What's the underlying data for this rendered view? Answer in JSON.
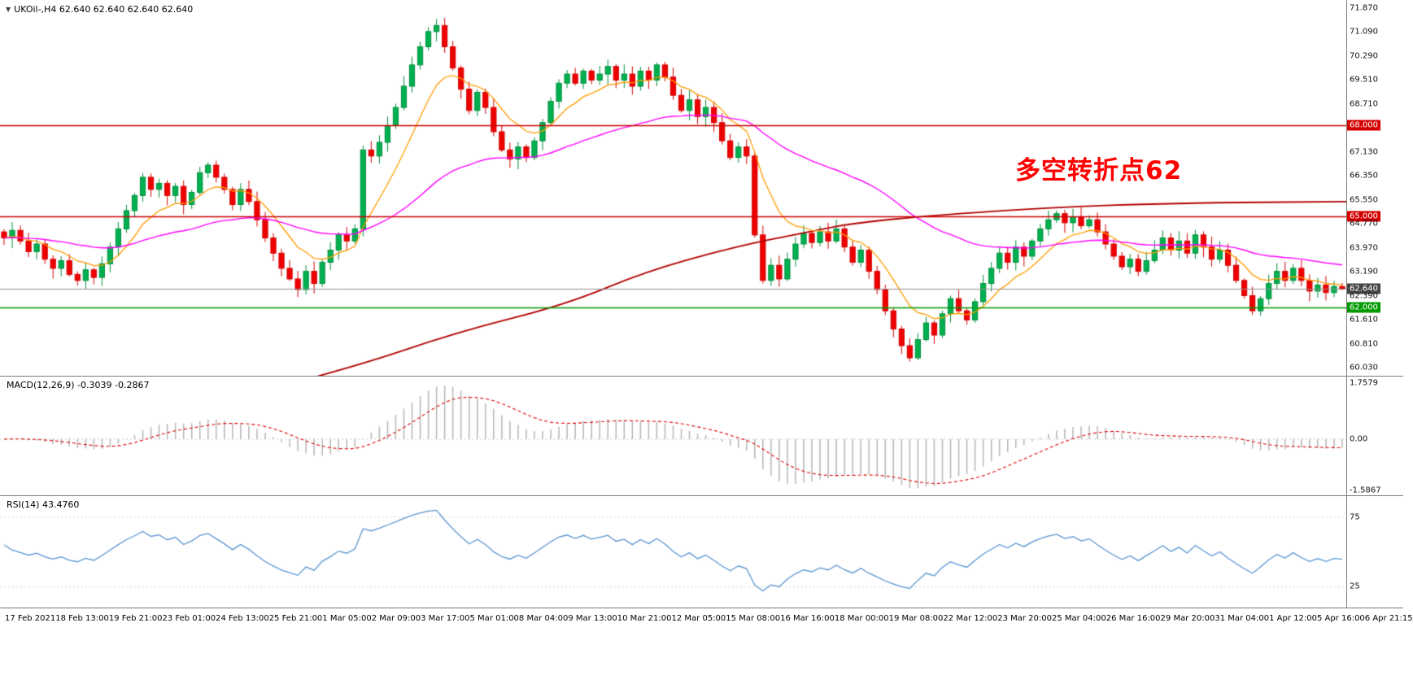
{
  "header": {
    "collapse_icon": "▼",
    "symbol_label": "UKOil-,H4 62.640 62.640 62.640 62.640"
  },
  "main_chart": {
    "annotation": "多空转折点62",
    "annotation_color": "#ff0000"
  },
  "macd_panel": {
    "label": "MACD(12,26,9) -0.3039 -0.2867"
  },
  "rsi_panel": {
    "label": "RSI(14) 43.4760"
  },
  "chart_data": {
    "type": "candlestick",
    "symbol": "UKOil-",
    "timeframe": "H4",
    "last_price": 62.64,
    "price_range": {
      "min": 59.76,
      "max": 72.14
    },
    "closes": [
      64.3,
      64.55,
      64.2,
      63.85,
      64.1,
      63.6,
      63.3,
      63.55,
      63.1,
      62.9,
      63.25,
      63.0,
      63.45,
      64.0,
      64.6,
      65.2,
      65.7,
      66.3,
      65.9,
      66.1,
      65.7,
      66.0,
      65.4,
      65.8,
      66.45,
      66.7,
      66.3,
      65.9,
      65.4,
      65.9,
      65.5,
      64.9,
      64.3,
      63.8,
      63.3,
      62.95,
      62.6,
      63.2,
      62.8,
      63.5,
      63.9,
      64.4,
      64.2,
      64.6,
      67.2,
      67.0,
      67.45,
      68.0,
      68.6,
      69.3,
      70.0,
      70.6,
      71.1,
      71.3,
      70.6,
      69.9,
      69.2,
      68.5,
      69.1,
      68.6,
      67.8,
      67.2,
      66.9,
      67.3,
      66.95,
      67.5,
      68.1,
      68.8,
      69.4,
      69.7,
      69.4,
      69.8,
      69.5,
      69.7,
      69.95,
      69.5,
      69.7,
      69.3,
      69.8,
      69.5,
      70.0,
      69.6,
      69.0,
      68.5,
      68.85,
      68.3,
      68.6,
      68.1,
      67.5,
      66.95,
      67.3,
      67.0,
      64.4,
      62.9,
      63.4,
      62.95,
      63.6,
      64.1,
      64.45,
      64.15,
      64.5,
      64.2,
      64.6,
      64.0,
      63.5,
      63.9,
      63.2,
      62.6,
      61.9,
      61.3,
      60.75,
      60.35,
      60.95,
      61.5,
      61.1,
      61.8,
      62.3,
      61.9,
      61.6,
      62.2,
      62.8,
      63.3,
      63.8,
      63.5,
      64.0,
      63.7,
      64.2,
      64.6,
      64.9,
      65.1,
      64.8,
      65.0,
      64.7,
      64.9,
      64.5,
      64.1,
      63.7,
      63.35,
      63.6,
      63.2,
      63.55,
      63.9,
      64.3,
      63.9,
      64.2,
      63.8,
      64.4,
      64.0,
      63.6,
      63.9,
      63.4,
      62.9,
      62.4,
      61.9,
      62.3,
      62.8,
      63.2,
      62.9,
      63.3,
      62.9,
      62.55,
      62.75,
      62.5,
      62.7,
      62.64
    ],
    "price_ticks": [
      {
        "label": "71.870",
        "value": 71.87,
        "type": "normal"
      },
      {
        "label": "71.090",
        "value": 71.09,
        "type": "normal"
      },
      {
        "label": "70.290",
        "value": 70.29,
        "type": "normal"
      },
      {
        "label": "69.510",
        "value": 69.51,
        "type": "normal"
      },
      {
        "label": "68.710",
        "value": 68.71,
        "type": "normal"
      },
      {
        "label": "68.000",
        "value": 68.0,
        "type": "resistance"
      },
      {
        "label": "67.130",
        "value": 67.13,
        "type": "normal"
      },
      {
        "label": "66.350",
        "value": 66.35,
        "type": "normal"
      },
      {
        "label": "65.550",
        "value": 65.55,
        "type": "normal"
      },
      {
        "label": "65.000",
        "value": 65.0,
        "type": "resistance"
      },
      {
        "label": "64.770",
        "value": 64.77,
        "type": "normal"
      },
      {
        "label": "63.970",
        "value": 63.97,
        "type": "normal"
      },
      {
        "label": "63.190",
        "value": 63.19,
        "type": "normal"
      },
      {
        "label": "62.640",
        "value": 62.64,
        "type": "current"
      },
      {
        "label": "62.390",
        "value": 62.39,
        "type": "normal"
      },
      {
        "label": "62.000",
        "value": 62.0,
        "type": "support"
      },
      {
        "label": "61.610",
        "value": 61.61,
        "type": "normal"
      },
      {
        "label": "60.810",
        "value": 60.81,
        "type": "normal"
      },
      {
        "label": "60.030",
        "value": 60.03,
        "type": "normal"
      }
    ],
    "hlines": [
      {
        "price": 68.0,
        "label": "68.000",
        "color": "#cc0000",
        "type": "resistance"
      },
      {
        "price": 65.0,
        "label": "65.000",
        "color": "#cc0000",
        "type": "resistance"
      },
      {
        "price": 62.0,
        "label": "62.000",
        "color": "#009a00",
        "type": "support"
      },
      {
        "price": 62.64,
        "label": "62.640",
        "color": "#909090",
        "type": "current"
      }
    ],
    "moving_averages": [
      {
        "name": "fast-ma",
        "period": 9,
        "color": "#ff9c00"
      },
      {
        "name": "mid-ma",
        "period": 45,
        "color": "#ff00ff"
      }
    ],
    "trend_ma": {
      "color": "#b30000",
      "waypoints": [
        [
          0.19,
          59.2
        ],
        [
          0.26,
          60.0
        ],
        [
          0.34,
          61.2
        ],
        [
          0.42,
          62.1
        ],
        [
          0.48,
          63.2
        ],
        [
          0.545,
          64.0
        ],
        [
          0.6,
          64.5
        ],
        [
          0.635,
          64.8
        ],
        [
          0.695,
          65.05
        ],
        [
          0.78,
          65.3
        ],
        [
          0.87,
          65.45
        ],
        [
          1.0,
          65.5
        ]
      ]
    },
    "macd": {
      "params": [
        12,
        26,
        9
      ],
      "current_values": [
        -0.3039,
        -0.2867
      ],
      "range": [
        -1.75,
        1.95
      ],
      "ticks": [
        {
          "label": "1.7579",
          "value": 1.7579
        },
        {
          "label": "0.00",
          "value": 0
        },
        {
          "label": "-1.5867",
          "value": -1.5867
        }
      ],
      "histogram_color": "#b5b5b5",
      "signal_color": "#dd0000"
    },
    "rsi": {
      "period": 14,
      "current_value": 43.476,
      "range": [
        10,
        90
      ],
      "levels": [
        75,
        25
      ],
      "ticks": [
        {
          "label": "75",
          "value": 75
        },
        {
          "label": "25",
          "value": 25
        }
      ],
      "line_color": "#5a96d2"
    },
    "time_labels": [
      "17 Feb 2021",
      "18 Feb 13:00",
      "19 Feb 21:00",
      "23 Feb 01:00",
      "24 Feb 13:00",
      "25 Feb 21:00",
      "1 Mar 05:00",
      "2 Mar 09:00",
      "3 Mar 17:00",
      "5 Mar 01:00",
      "8 Mar 04:00",
      "9 Mar 13:00",
      "10 Mar 21:00",
      "12 Mar 05:00",
      "15 Mar 08:00",
      "16 Mar 16:00",
      "18 Mar 00:00",
      "19 Mar 08:00",
      "22 Mar 12:00",
      "23 Mar 20:00",
      "25 Mar 04:00",
      "26 Mar 16:00",
      "29 Mar 20:00",
      "31 Mar 04:00",
      "1 Apr 12:00",
      "5 Apr 16:00",
      "6 Apr 21:15"
    ]
  }
}
